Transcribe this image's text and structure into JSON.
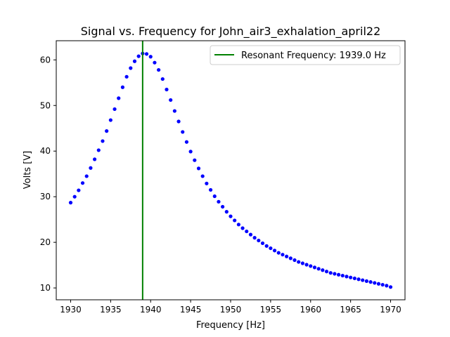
{
  "chart_data": {
    "type": "scatter",
    "title": "Signal vs. Frequency for John_air3_exhalation_april22",
    "xlabel": "Frequency [Hz]",
    "ylabel": "Volts [V]",
    "xlim": [
      1928.2,
      1971.8
    ],
    "ylim": [
      7.4,
      64.2
    ],
    "xticks": [
      1930,
      1935,
      1940,
      1945,
      1950,
      1955,
      1960,
      1965,
      1970
    ],
    "yticks": [
      10,
      20,
      30,
      40,
      50,
      60
    ],
    "grid": false,
    "legend_position": "top-right",
    "series": [
      {
        "color": "#0000ff",
        "marker": "dot",
        "x": [
          1930.0,
          1930.5,
          1931.0,
          1931.5,
          1932.0,
          1932.5,
          1933.0,
          1933.5,
          1934.0,
          1934.5,
          1935.0,
          1935.5,
          1936.0,
          1936.5,
          1937.0,
          1937.5,
          1938.0,
          1938.5,
          1939.0,
          1939.5,
          1940.0,
          1940.5,
          1941.0,
          1941.5,
          1942.0,
          1942.5,
          1943.0,
          1943.5,
          1944.0,
          1944.5,
          1945.0,
          1945.5,
          1946.0,
          1946.5,
          1947.0,
          1947.5,
          1948.0,
          1948.5,
          1949.0,
          1949.5,
          1950.0,
          1950.5,
          1951.0,
          1951.5,
          1952.0,
          1952.5,
          1953.0,
          1953.5,
          1954.0,
          1954.5,
          1955.0,
          1955.5,
          1956.0,
          1956.5,
          1957.0,
          1957.5,
          1958.0,
          1958.5,
          1959.0,
          1959.5,
          1960.0,
          1960.5,
          1961.0,
          1961.5,
          1962.0,
          1962.5,
          1963.0,
          1963.5,
          1964.0,
          1964.5,
          1965.0,
          1965.5,
          1966.0,
          1966.5,
          1967.0,
          1967.5,
          1968.0,
          1968.5,
          1969.0,
          1969.5,
          1970.0
        ],
        "y": [
          28.7,
          30.0,
          31.4,
          33.0,
          34.5,
          36.3,
          38.2,
          40.2,
          42.2,
          44.4,
          46.8,
          49.2,
          51.6,
          54.0,
          56.3,
          58.2,
          59.7,
          60.8,
          61.4,
          61.3,
          60.7,
          59.4,
          57.8,
          55.8,
          53.5,
          51.2,
          48.8,
          46.5,
          44.2,
          42.0,
          39.9,
          38.0,
          36.2,
          34.5,
          32.9,
          31.5,
          30.1,
          28.9,
          27.8,
          26.7,
          25.7,
          24.8,
          23.9,
          23.1,
          22.4,
          21.7,
          21.0,
          20.4,
          19.8,
          19.2,
          18.7,
          18.2,
          17.7,
          17.3,
          16.9,
          16.5,
          16.1,
          15.7,
          15.4,
          15.1,
          14.8,
          14.5,
          14.2,
          13.9,
          13.6,
          13.3,
          13.1,
          12.9,
          12.7,
          12.5,
          12.3,
          12.1,
          11.9,
          11.7,
          11.5,
          11.3,
          11.1,
          10.9,
          10.7,
          10.5,
          10.2
        ]
      }
    ],
    "vline": {
      "x": 1939.0,
      "color": "#008000",
      "label": "Resonant Frequency: 1939.0 Hz"
    }
  }
}
